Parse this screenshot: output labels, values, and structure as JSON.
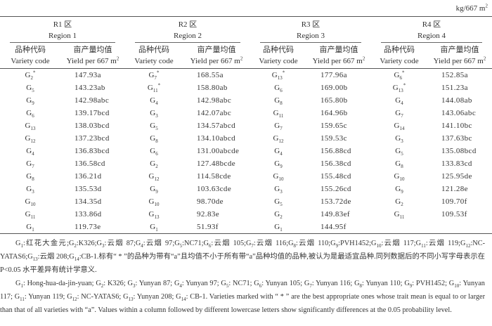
{
  "unit": "kg/667 m",
  "unit_sup": "2",
  "regions": [
    {
      "cn": "R1 区",
      "en": "Region 1"
    },
    {
      "cn": "R2 区",
      "en": "Region 2"
    },
    {
      "cn": "R3 区",
      "en": "Region 3"
    },
    {
      "cn": "R4 区",
      "en": "Region 4"
    }
  ],
  "subheaders": {
    "code_cn": "品种代码",
    "code_en": "Variety code",
    "yield_cn": "亩产量均值",
    "yield_en": "Yield per 667 m",
    "yield_sup": "2"
  },
  "columns": [
    [
      [
        "2",
        "*",
        "147.93a"
      ],
      [
        "5",
        "",
        "143.23ab"
      ],
      [
        "9",
        "",
        "142.98abc"
      ],
      [
        "6",
        "",
        "139.17bcd"
      ],
      [
        "13",
        "",
        "138.03bcd"
      ],
      [
        "12",
        "",
        "137.23bcd"
      ],
      [
        "4",
        "",
        "136.83bcd"
      ],
      [
        "7",
        "",
        "136.58cd"
      ],
      [
        "8",
        "",
        "136.21d"
      ],
      [
        "3",
        "",
        "135.53d"
      ],
      [
        "10",
        "",
        "134.35d"
      ],
      [
        "11",
        "",
        "133.86d"
      ],
      [
        "1",
        "",
        "119.73e"
      ]
    ],
    [
      [
        "7",
        "*",
        "168.55a"
      ],
      [
        "11",
        "*",
        "158.80ab"
      ],
      [
        "4",
        "",
        "142.98abc"
      ],
      [
        "3",
        "",
        "142.07abc"
      ],
      [
        "5",
        "",
        "134.57abcd"
      ],
      [
        "8",
        "",
        "134.10abcd"
      ],
      [
        "6",
        "",
        "131.00abcde"
      ],
      [
        "2",
        "",
        "127.48bcde"
      ],
      [
        "12",
        "",
        "114.58cde"
      ],
      [
        "9",
        "",
        "103.63cde"
      ],
      [
        "10",
        "",
        "98.70de"
      ],
      [
        "13",
        "",
        "92.83e"
      ],
      [
        "1",
        "",
        "51.93f"
      ]
    ],
    [
      [
        "13",
        "*",
        "177.96a"
      ],
      [
        "6",
        "",
        "169.00b"
      ],
      [
        "8",
        "",
        "165.80b"
      ],
      [
        "11",
        "",
        "164.96b"
      ],
      [
        "7",
        "",
        "159.65c"
      ],
      [
        "12",
        "",
        "159.53c"
      ],
      [
        "4",
        "",
        "156.88cd"
      ],
      [
        "9",
        "",
        "156.38cd"
      ],
      [
        "10",
        "",
        "155.48cd"
      ],
      [
        "3",
        "",
        "155.26cd"
      ],
      [
        "5",
        "",
        "153.72de"
      ],
      [
        "2",
        "",
        "149.83ef"
      ],
      [
        "1",
        "",
        "144.95f"
      ]
    ],
    [
      [
        "6",
        "*",
        "152.85a"
      ],
      [
        "13",
        "*",
        "151.23a"
      ],
      [
        "4",
        "",
        "144.08ab"
      ],
      [
        "7",
        "",
        "143.06abc"
      ],
      [
        "14",
        "",
        "141.10bc"
      ],
      [
        "3",
        "",
        "137.63bc"
      ],
      [
        "5",
        "",
        "135.08bcd"
      ],
      [
        "8",
        "",
        "133.83cd"
      ],
      [
        "10",
        "",
        "125.95de"
      ],
      [
        "9",
        "",
        "121.28e"
      ],
      [
        "2",
        "",
        "109.70f"
      ],
      [
        "11",
        "",
        "109.53f"
      ]
    ]
  ],
  "notes": [
    [
      [
        "1",
        ":红花大金元;"
      ],
      [
        "2",
        ":K326;"
      ],
      [
        "3",
        ":云烟 87;"
      ],
      [
        "4",
        ":云烟 97;"
      ],
      [
        "5",
        ":NC71;"
      ],
      [
        "6",
        ":云烟 105;"
      ],
      [
        "7",
        ":云烟 116;"
      ],
      [
        "8",
        ":云烟 110;"
      ],
      [
        "9",
        ":PVH1452;"
      ],
      [
        "10",
        ":云烟 117;"
      ],
      [
        "11",
        ":云烟 119;"
      ],
      [
        "12",
        ":NC-YATAS6;"
      ],
      [
        "13",
        ":云烟 208;"
      ],
      [
        "14",
        ":CB-1.标有“ * ”的品种为带有“a”且均值不小于所有带“a”品种均值的品种,被认为是最适宜品种.同列数据后的不同小写字母表示在 P<0.05 水平差异有统计学意义."
      ]
    ],
    [
      [
        "1",
        ": Hong-hua-da-jin-yuan; "
      ],
      [
        "2",
        ": K326; "
      ],
      [
        "3",
        ": Yunyan 87; "
      ],
      [
        "4",
        ": Yunyan 97; "
      ],
      [
        "5",
        ": NC71; "
      ],
      [
        "6",
        ": Yunyan 105; "
      ],
      [
        "7",
        ": Yunyan 116; "
      ],
      [
        "8",
        ": Yunyan 110; "
      ],
      [
        "9",
        ": PVH1452; "
      ],
      [
        "10",
        ": Yunyan 117; "
      ],
      [
        "11",
        ": Yunyan 119; "
      ],
      [
        "12",
        ": NC-YATAS6; "
      ],
      [
        "13",
        ": Yunyan 208; "
      ],
      [
        "14",
        ": CB-1. Varieties marked with “ * ” are the best appropriate ones whose trait mean is equal to or larger than that of all varieties with “a”. Values within a column followed by different lowercase letters show significantly differences at the 0.05 probability level."
      ]
    ]
  ]
}
